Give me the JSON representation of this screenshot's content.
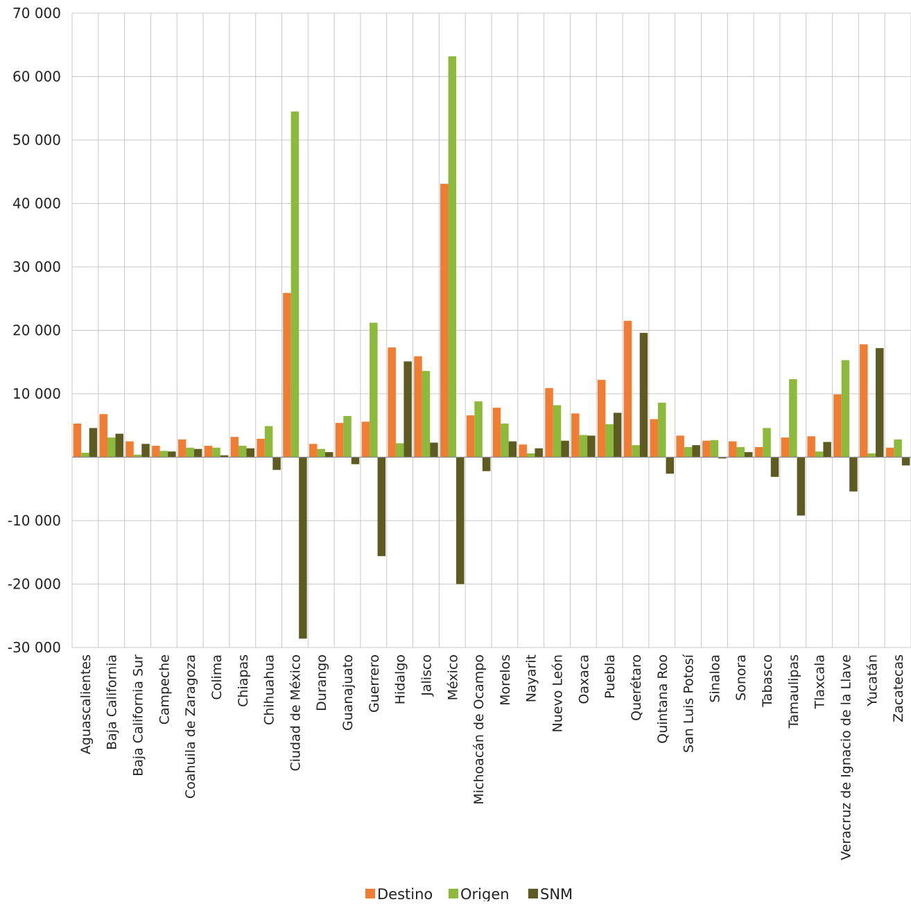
{
  "chart_data": {
    "type": "bar",
    "title": "",
    "xlabel": "",
    "ylabel": "",
    "ylim": [
      -30000,
      70000
    ],
    "yticks": [
      -30000,
      -20000,
      -10000,
      0,
      10000,
      20000,
      30000,
      40000,
      50000,
      60000,
      70000
    ],
    "ytick_labels": [
      "-30 000",
      "-20 000",
      "-10 000",
      "",
      "10 000",
      "20 000",
      "30 000",
      "40 000",
      "50 000",
      "60 000",
      "70 000"
    ],
    "grid": true,
    "legend_position": "bottom",
    "categories": [
      "Aguascalientes",
      "Baja California",
      "Baja California Sur",
      "Campeche",
      "Coahuila de Zaragoza",
      "Colima",
      "Chiapas",
      "Chihuahua",
      "Ciudad de México",
      "Durango",
      "Guanajuato",
      "Guerrero",
      "Hidalgo",
      "Jalisco",
      "México",
      "Michoacán de Ocampo",
      "Morelos",
      "Nayarit",
      "Nuevo León",
      "Oaxaca",
      "Puebla",
      "Querétaro",
      "Quintana Roo",
      "San Luis Potosí",
      "Sinaloa",
      "Sonora",
      "Tabasco",
      "Tamaulipas",
      "Tlaxcala",
      "Veracruz de Ignacio de la Llave",
      "Yucatán",
      "Zacatecas"
    ],
    "series": [
      {
        "name": "Destino",
        "color": "#ef7d33",
        "values": [
          5300,
          6800,
          2500,
          1800,
          2800,
          1800,
          3200,
          2900,
          25900,
          2100,
          5400,
          5600,
          17300,
          15900,
          43100,
          6600,
          7800,
          2000,
          10900,
          6900,
          12200,
          21500,
          6000,
          3400,
          2600,
          2500,
          1600,
          3100,
          3300,
          9900,
          17800,
          1500
        ]
      },
      {
        "name": "Origen",
        "color": "#8db93d",
        "values": [
          700,
          3100,
          400,
          1000,
          1500,
          1500,
          1800,
          4900,
          54500,
          1300,
          6500,
          21200,
          2200,
          13600,
          63200,
          8800,
          5300,
          600,
          8200,
          3500,
          5200,
          1900,
          8600,
          1600,
          2700,
          1600,
          4600,
          12300,
          900,
          15300,
          600,
          2800
        ]
      },
      {
        "name": "SNM",
        "color": "#5e5b22",
        "values": [
          4600,
          3700,
          2100,
          900,
          1300,
          300,
          1400,
          -2000,
          -28600,
          800,
          -1100,
          -15600,
          15100,
          2300,
          -20000,
          -2200,
          2500,
          1400,
          2600,
          3400,
          7000,
          19600,
          -2600,
          1900,
          -200,
          800,
          -3100,
          -9200,
          2400,
          -5400,
          17200,
          -1300
        ]
      }
    ]
  }
}
